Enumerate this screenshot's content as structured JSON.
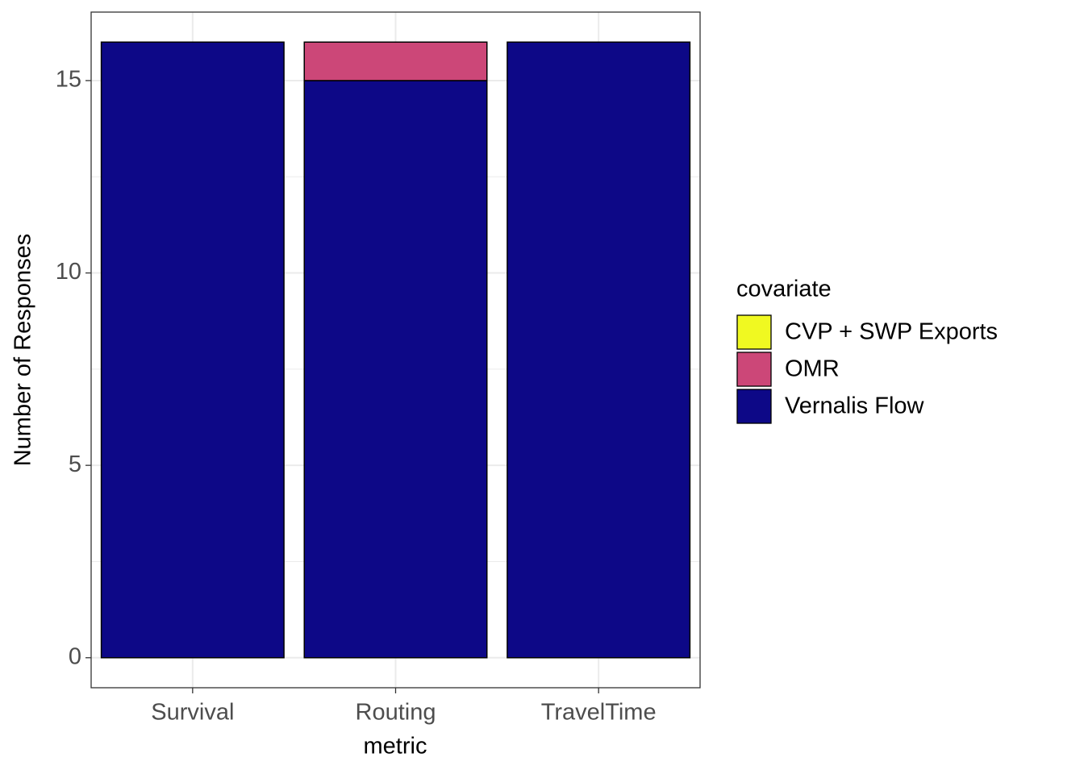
{
  "chart_data": {
    "type": "stacked_bar",
    "x_label": "metric",
    "y_label": "Number of Responses",
    "categories": [
      "Survival",
      "Routing",
      "TravelTime"
    ],
    "series": [
      {
        "name": "CVP + SWP Exports",
        "color": "#f0f921",
        "values": [
          0,
          0,
          0
        ]
      },
      {
        "name": "OMR",
        "color": "#cc4778",
        "values": [
          0,
          1,
          0
        ]
      },
      {
        "name": "Vernalis Flow",
        "color": "#0d0887",
        "values": [
          16,
          15,
          16
        ]
      }
    ],
    "legend_title": "covariate",
    "legend_position": "right",
    "ylim": [
      -0.78,
      16.78
    ],
    "yticks": [
      0,
      5,
      10,
      15
    ],
    "minor_yticks": [
      2.5,
      7.5,
      12.5
    ],
    "grid": true
  }
}
